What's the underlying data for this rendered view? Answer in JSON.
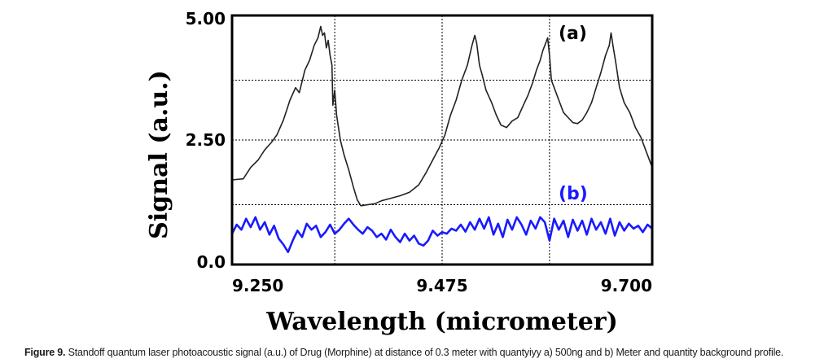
{
  "chart_data": {
    "type": "line",
    "xlabel": "Wavelength (micrometer)",
    "ylabel": "Signal (a.u.)",
    "xlim": [
      9.25,
      9.7
    ],
    "ylim": [
      0.0,
      5.0
    ],
    "x_tick_labels": [
      "9.250",
      "9.475",
      "9.700"
    ],
    "y_tick_labels": [
      "0.0",
      "2.50",
      "5.00"
    ],
    "x_tick_values": [
      9.25,
      9.475,
      9.7
    ],
    "y_tick_values": [
      0.0,
      2.5,
      5.0
    ],
    "grid_x": [
      9.36,
      9.475,
      9.59
    ],
    "grid_y": [
      1.2,
      2.5,
      3.7
    ],
    "series": [
      {
        "name": "(a)",
        "label_color": "#000000",
        "color": "#222222",
        "points": [
          [
            9.25,
            1.7
          ],
          [
            9.262,
            1.72
          ],
          [
            9.27,
            1.95
          ],
          [
            9.278,
            2.1
          ],
          [
            9.285,
            2.3
          ],
          [
            9.292,
            2.45
          ],
          [
            9.298,
            2.6
          ],
          [
            9.305,
            2.9
          ],
          [
            9.312,
            3.3
          ],
          [
            9.318,
            3.55
          ],
          [
            9.322,
            3.45
          ],
          [
            9.328,
            3.9
          ],
          [
            9.333,
            4.1
          ],
          [
            9.338,
            4.4
          ],
          [
            9.342,
            4.55
          ],
          [
            9.345,
            4.78
          ],
          [
            9.347,
            4.6
          ],
          [
            9.349,
            4.65
          ],
          [
            9.351,
            4.35
          ],
          [
            9.353,
            4.5
          ],
          [
            9.355,
            4.2
          ],
          [
            9.357,
            4.0
          ],
          [
            9.358,
            3.2
          ],
          [
            9.36,
            3.5
          ],
          [
            9.362,
            3.0
          ],
          [
            9.366,
            2.5
          ],
          [
            9.37,
            2.2
          ],
          [
            9.375,
            1.9
          ],
          [
            9.38,
            1.55
          ],
          [
            9.384,
            1.3
          ],
          [
            9.388,
            1.18
          ],
          [
            9.395,
            1.2
          ],
          [
            9.403,
            1.22
          ],
          [
            9.41,
            1.28
          ],
          [
            9.42,
            1.33
          ],
          [
            9.43,
            1.38
          ],
          [
            9.44,
            1.45
          ],
          [
            9.45,
            1.6
          ],
          [
            9.458,
            1.85
          ],
          [
            9.465,
            2.1
          ],
          [
            9.472,
            2.35
          ],
          [
            9.478,
            2.6
          ],
          [
            9.484,
            3.0
          ],
          [
            9.49,
            3.3
          ],
          [
            9.496,
            3.7
          ],
          [
            9.502,
            4.0
          ],
          [
            9.507,
            4.4
          ],
          [
            9.51,
            4.6
          ],
          [
            9.512,
            4.45
          ],
          [
            9.515,
            4.0
          ],
          [
            9.518,
            3.8
          ],
          [
            9.522,
            3.5
          ],
          [
            9.528,
            3.25
          ],
          [
            9.533,
            3.0
          ],
          [
            9.538,
            2.8
          ],
          [
            9.544,
            2.75
          ],
          [
            9.55,
            2.88
          ],
          [
            9.556,
            2.95
          ],
          [
            9.562,
            3.2
          ],
          [
            9.567,
            3.4
          ],
          [
            9.572,
            3.65
          ],
          [
            9.576,
            3.9
          ],
          [
            9.58,
            4.1
          ],
          [
            9.583,
            4.3
          ],
          [
            9.586,
            4.45
          ],
          [
            9.588,
            4.55
          ],
          [
            9.59,
            4.2
          ],
          [
            9.592,
            3.7
          ],
          [
            9.595,
            3.55
          ],
          [
            9.6,
            3.3
          ],
          [
            9.605,
            3.05
          ],
          [
            9.61,
            2.95
          ],
          [
            9.615,
            2.85
          ],
          [
            9.62,
            2.83
          ],
          [
            9.625,
            2.9
          ],
          [
            9.63,
            3.05
          ],
          [
            9.635,
            3.25
          ],
          [
            9.64,
            3.55
          ],
          [
            9.645,
            3.85
          ],
          [
            9.65,
            4.2
          ],
          [
            9.654,
            4.4
          ],
          [
            9.656,
            4.65
          ],
          [
            9.658,
            4.4
          ],
          [
            9.661,
            4.05
          ],
          [
            9.665,
            3.55
          ],
          [
            9.67,
            3.25
          ],
          [
            9.676,
            3.05
          ],
          [
            9.682,
            2.75
          ],
          [
            9.688,
            2.55
          ],
          [
            9.694,
            2.25
          ],
          [
            9.7,
            1.95
          ]
        ]
      },
      {
        "name": "(b)",
        "label_color": "#1a1aff",
        "color": "#1a1aff",
        "points": [
          [
            9.25,
            0.62
          ],
          [
            9.255,
            0.8
          ],
          [
            9.26,
            0.7
          ],
          [
            9.265,
            0.92
          ],
          [
            9.27,
            0.75
          ],
          [
            9.275,
            0.95
          ],
          [
            9.28,
            0.7
          ],
          [
            9.285,
            0.85
          ],
          [
            9.29,
            0.6
          ],
          [
            9.295,
            0.78
          ],
          [
            9.3,
            0.52
          ],
          [
            9.305,
            0.4
          ],
          [
            9.31,
            0.25
          ],
          [
            9.315,
            0.48
          ],
          [
            9.32,
            0.68
          ],
          [
            9.325,
            0.55
          ],
          [
            9.33,
            0.82
          ],
          [
            9.335,
            0.7
          ],
          [
            9.34,
            0.78
          ],
          [
            9.345,
            0.55
          ],
          [
            9.35,
            0.65
          ],
          [
            9.355,
            0.8
          ],
          [
            9.36,
            0.62
          ],
          [
            9.365,
            0.7
          ],
          [
            9.37,
            0.82
          ],
          [
            9.375,
            0.92
          ],
          [
            9.38,
            0.8
          ],
          [
            9.385,
            0.7
          ],
          [
            9.39,
            0.62
          ],
          [
            9.395,
            0.75
          ],
          [
            9.4,
            0.68
          ],
          [
            9.405,
            0.55
          ],
          [
            9.41,
            0.62
          ],
          [
            9.415,
            0.5
          ],
          [
            9.42,
            0.7
          ],
          [
            9.425,
            0.55
          ],
          [
            9.43,
            0.45
          ],
          [
            9.435,
            0.62
          ],
          [
            9.44,
            0.48
          ],
          [
            9.445,
            0.58
          ],
          [
            9.45,
            0.42
          ],
          [
            9.455,
            0.38
          ],
          [
            9.46,
            0.48
          ],
          [
            9.465,
            0.68
          ],
          [
            9.47,
            0.58
          ],
          [
            9.475,
            0.65
          ],
          [
            9.48,
            0.62
          ],
          [
            9.485,
            0.72
          ],
          [
            9.49,
            0.68
          ],
          [
            9.495,
            0.8
          ],
          [
            9.5,
            0.66
          ],
          [
            9.505,
            0.85
          ],
          [
            9.51,
            0.7
          ],
          [
            9.515,
            0.92
          ],
          [
            9.52,
            0.72
          ],
          [
            9.525,
            0.95
          ],
          [
            9.53,
            0.6
          ],
          [
            9.535,
            0.82
          ],
          [
            9.54,
            0.55
          ],
          [
            9.545,
            0.9
          ],
          [
            9.55,
            0.7
          ],
          [
            9.555,
            0.95
          ],
          [
            9.56,
            0.8
          ],
          [
            9.565,
            0.6
          ],
          [
            9.57,
            0.88
          ],
          [
            9.575,
            0.72
          ],
          [
            9.58,
            0.95
          ],
          [
            9.585,
            0.85
          ],
          [
            9.59,
            0.48
          ],
          [
            9.595,
            0.92
          ],
          [
            9.6,
            0.7
          ],
          [
            9.605,
            0.88
          ],
          [
            9.61,
            0.55
          ],
          [
            9.615,
            0.9
          ],
          [
            9.62,
            0.68
          ],
          [
            9.625,
            0.88
          ],
          [
            9.63,
            0.6
          ],
          [
            9.635,
            0.92
          ],
          [
            9.64,
            0.7
          ],
          [
            9.645,
            0.85
          ],
          [
            9.65,
            0.62
          ],
          [
            9.655,
            0.92
          ],
          [
            9.66,
            0.58
          ],
          [
            9.665,
            0.85
          ],
          [
            9.67,
            0.68
          ],
          [
            9.675,
            0.82
          ],
          [
            9.68,
            0.72
          ],
          [
            9.685,
            0.78
          ],
          [
            9.69,
            0.65
          ],
          [
            9.695,
            0.8
          ],
          [
            9.7,
            0.72
          ]
        ]
      }
    ]
  },
  "caption": {
    "prefix": "Figure 9.",
    "text": " Standoff quantum laser photoacoustic signal (a.u.) of Drug (Morphine) at distance of 0.3 meter with quantyiyy a) 500ng and b) Meter and quantity background profile."
  },
  "colors": {
    "axis": "#000000",
    "grid": "#000000"
  }
}
